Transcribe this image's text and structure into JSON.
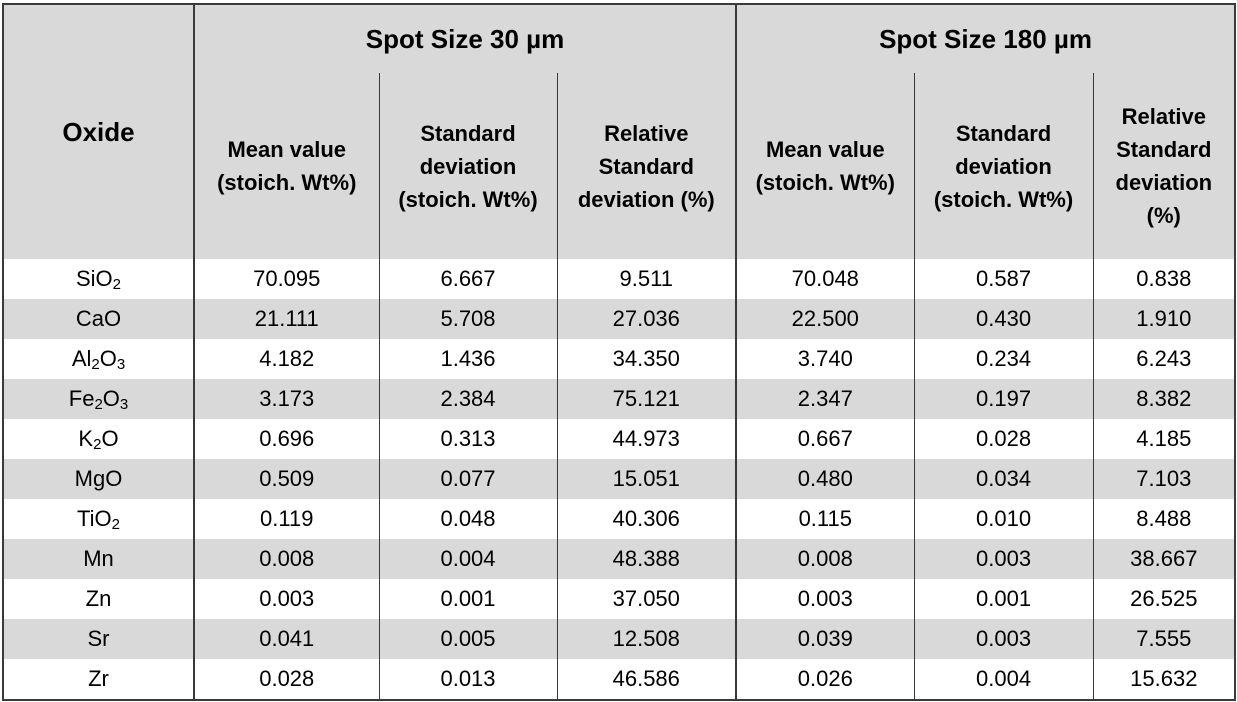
{
  "table": {
    "group_headers": {
      "oxide": "Oxide",
      "spot30": "Spot Size 30 µm",
      "spot180": "Spot Size 180 µm"
    },
    "sub_headers": {
      "mean_l1": "Mean value",
      "mean_l2": "(stoich. Wt%)",
      "std_l1": "Standard",
      "std_l2": "deviation",
      "std_l3": "(stoich. Wt%)",
      "rsd_l1": "Relative",
      "rsd_l2": "Standard",
      "rsd_l3": "deviation (%)",
      "rsd180_l3": "deviation",
      "rsd180_l4": "(%)"
    },
    "rows": [
      {
        "base": "SiO",
        "sub1": "2",
        "mid": "",
        "sub2": "",
        "v": [
          "70.095",
          "6.667",
          "9.511",
          "70.048",
          "0.587",
          "0.838"
        ]
      },
      {
        "base": "CaO",
        "sub1": "",
        "mid": "",
        "sub2": "",
        "v": [
          "21.111",
          "5.708",
          "27.036",
          "22.500",
          "0.430",
          "1.910"
        ]
      },
      {
        "base": "Al",
        "sub1": "2",
        "mid": "O",
        "sub2": "3",
        "v": [
          "4.182",
          "1.436",
          "34.350",
          "3.740",
          "0.234",
          "6.243"
        ]
      },
      {
        "base": "Fe",
        "sub1": "2",
        "mid": "O",
        "sub2": "3",
        "v": [
          "3.173",
          "2.384",
          "75.121",
          "2.347",
          "0.197",
          "8.382"
        ]
      },
      {
        "base": "K",
        "sub1": "2",
        "mid": "O",
        "sub2": "",
        "v": [
          "0.696",
          "0.313",
          "44.973",
          "0.667",
          "0.028",
          "4.185"
        ]
      },
      {
        "base": "MgO",
        "sub1": "",
        "mid": "",
        "sub2": "",
        "v": [
          "0.509",
          "0.077",
          "15.051",
          "0.480",
          "0.034",
          "7.103"
        ]
      },
      {
        "base": "TiO",
        "sub1": "2",
        "mid": "",
        "sub2": "",
        "v": [
          "0.119",
          "0.048",
          "40.306",
          "0.115",
          "0.010",
          "8.488"
        ]
      },
      {
        "base": "Mn",
        "sub1": "",
        "mid": "",
        "sub2": "",
        "v": [
          "0.008",
          "0.004",
          "48.388",
          "0.008",
          "0.003",
          "38.667"
        ]
      },
      {
        "base": "Zn",
        "sub1": "",
        "mid": "",
        "sub2": "",
        "v": [
          "0.003",
          "0.001",
          "37.050",
          "0.003",
          "0.001",
          "26.525"
        ]
      },
      {
        "base": "Sr",
        "sub1": "",
        "mid": "",
        "sub2": "",
        "v": [
          "0.041",
          "0.005",
          "12.508",
          "0.039",
          "0.003",
          "7.555"
        ]
      },
      {
        "base": "Zr",
        "sub1": "",
        "mid": "",
        "sub2": "",
        "v": [
          "0.028",
          "0.013",
          "46.586",
          "0.026",
          "0.004",
          "15.632"
        ]
      }
    ]
  }
}
